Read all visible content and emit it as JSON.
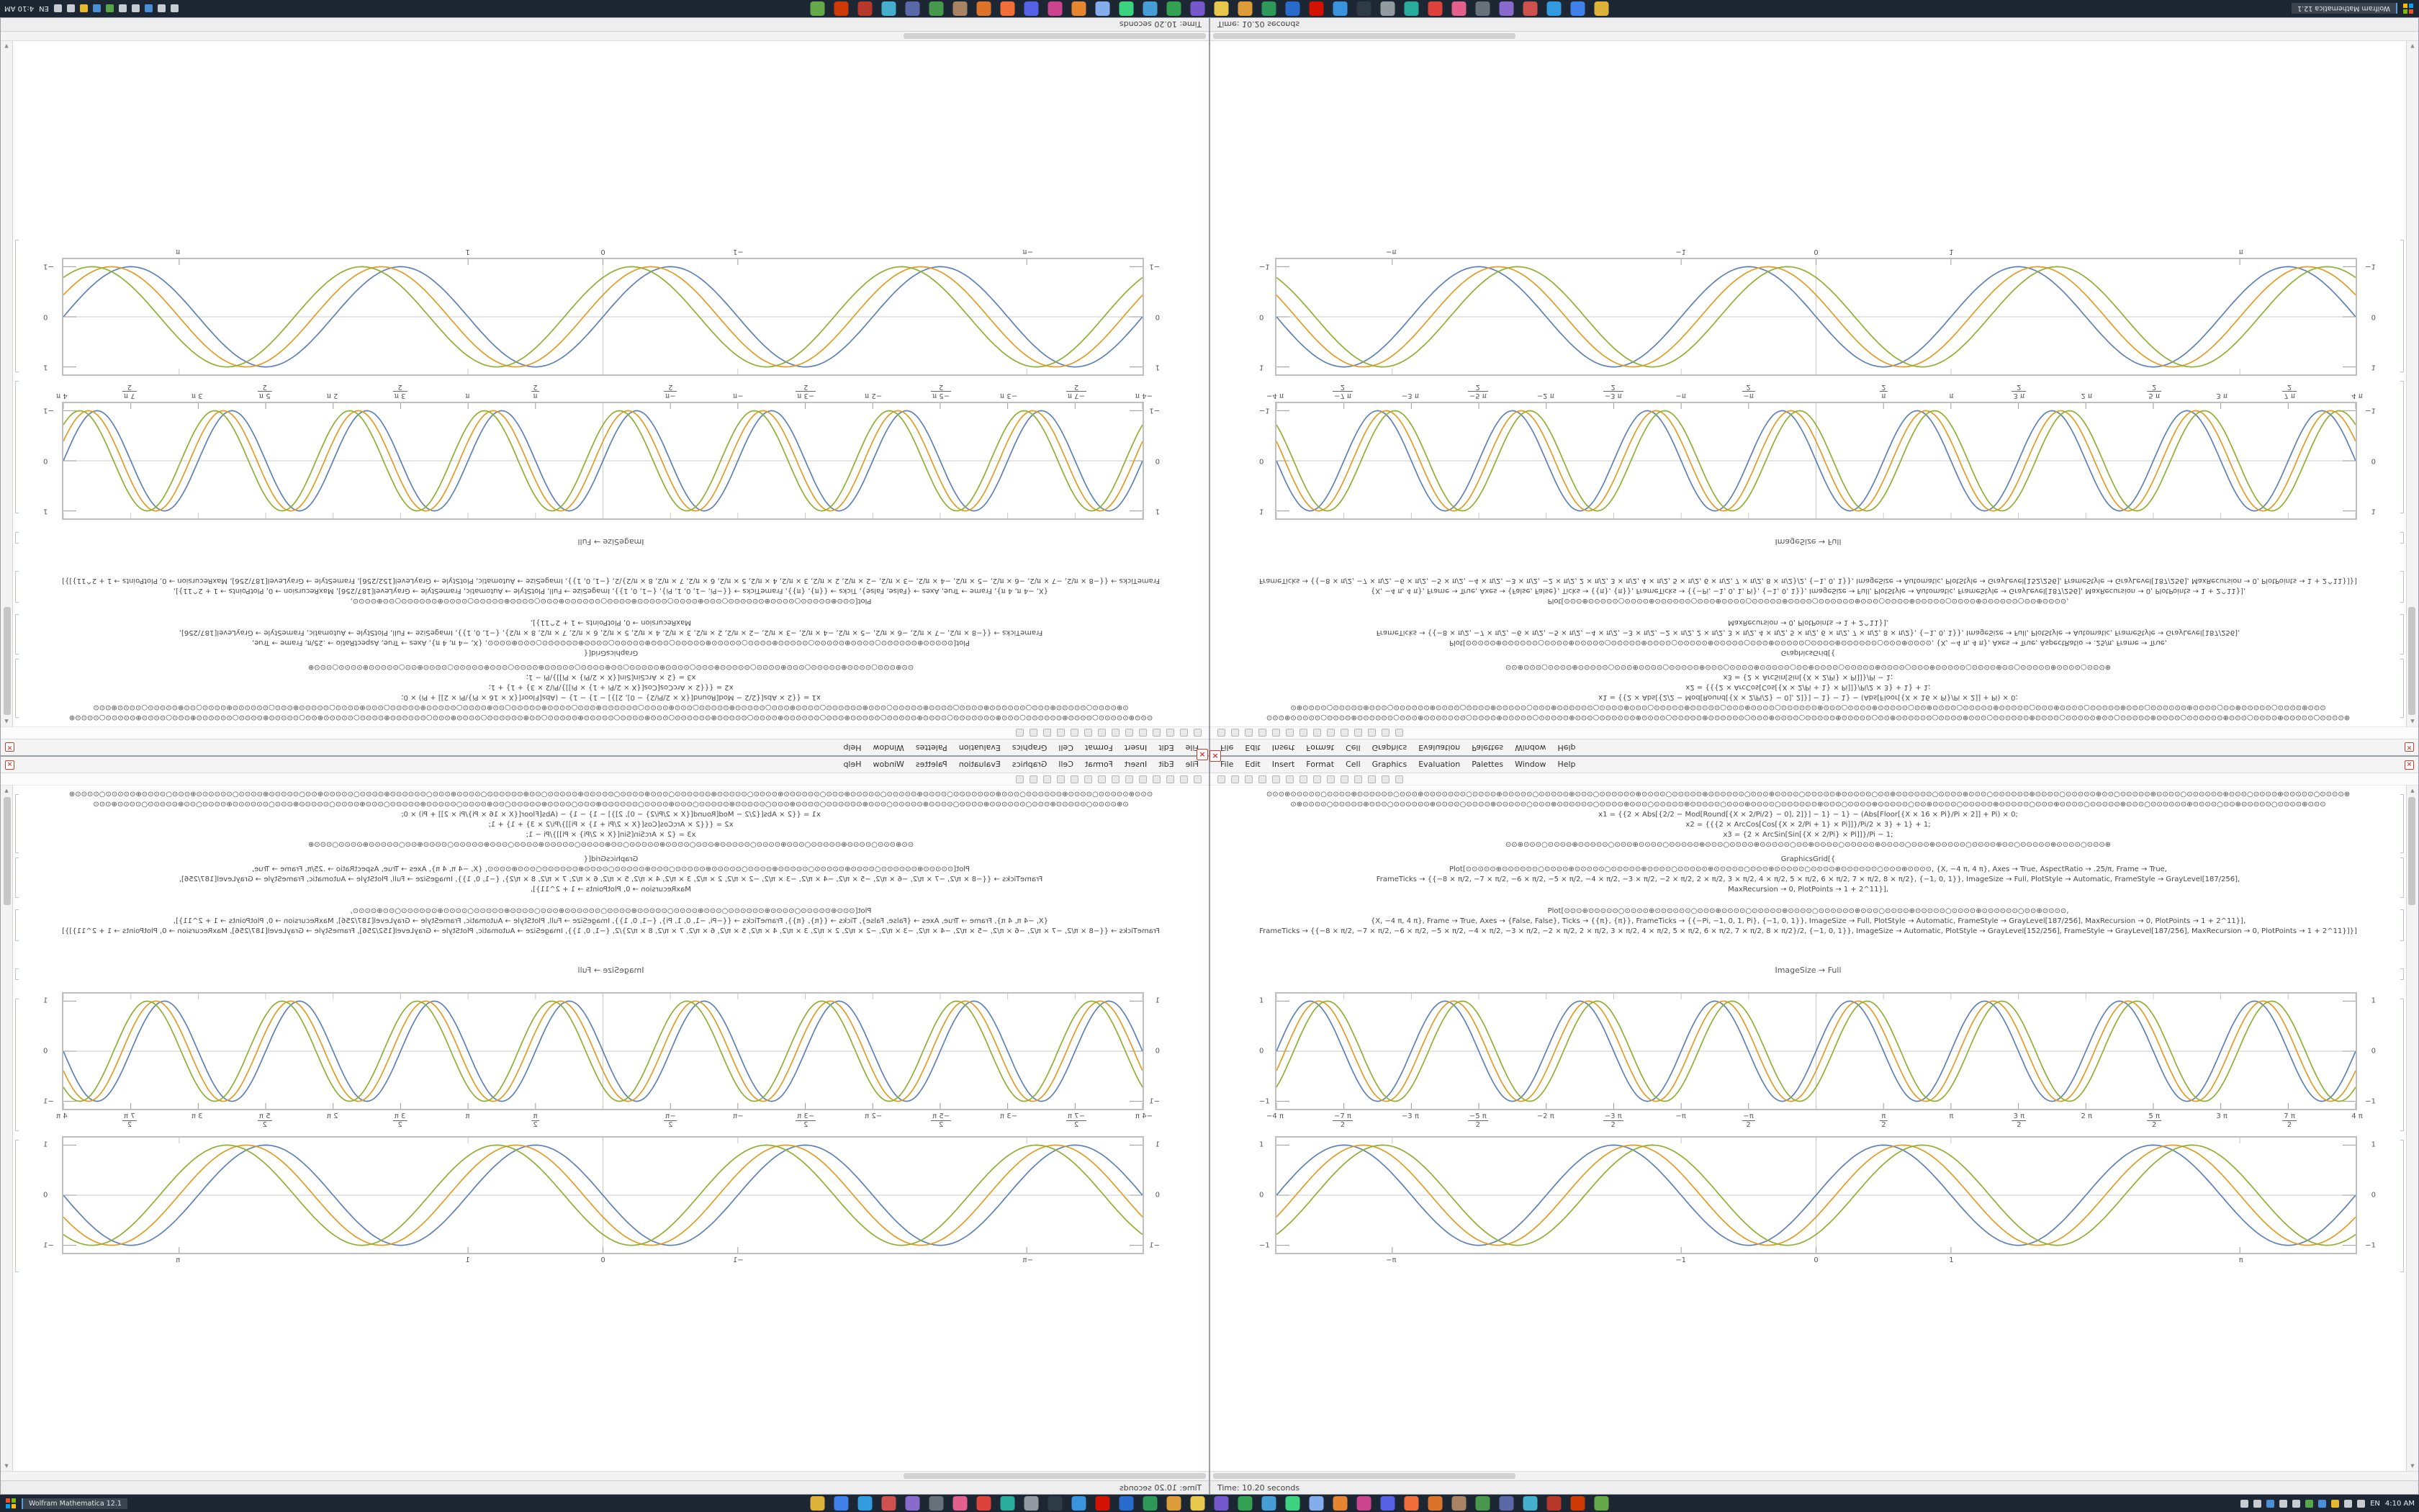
{
  "app": {
    "menu_items": [
      "File",
      "Edit",
      "Insert",
      "Format",
      "Cell",
      "Graphics",
      "Evaluation",
      "Palettes",
      "Window",
      "Help"
    ],
    "toolbar_buttons": [
      "new",
      "open",
      "save",
      "print",
      "cut",
      "copy",
      "paste",
      "undo",
      "redo",
      "find",
      "zoom-out",
      "zoom-in",
      "options",
      "help"
    ],
    "close_glyph": "×",
    "scroll_up_glyph": "▲",
    "scroll_down_glyph": "▼",
    "status_text": "Time: 10.20 seconds",
    "taskbar": {
      "window_button_label": "Wolfram Mathematica 12.1",
      "language": "EN",
      "clock": "4:10 AM",
      "app_icons": [
        {
          "name": "files",
          "color": "#e8b93a"
        },
        {
          "name": "browser",
          "color": "#4285f4"
        },
        {
          "name": "mail",
          "color": "#34a0e8"
        },
        {
          "name": "calendar",
          "color": "#d9534f"
        },
        {
          "name": "photos",
          "color": "#8e6fd6"
        },
        {
          "name": "camera",
          "color": "#6c757d"
        },
        {
          "name": "music",
          "color": "#f06292"
        },
        {
          "name": "video",
          "color": "#e8453c"
        },
        {
          "name": "store",
          "color": "#2bb3a3"
        },
        {
          "name": "settings",
          "color": "#9aa0a6"
        },
        {
          "name": "terminal",
          "color": "#2f3b47"
        },
        {
          "name": "code-editor",
          "color": "#3b9ae8"
        },
        {
          "name": "mathematica",
          "color": "#dd1100"
        },
        {
          "name": "docs",
          "color": "#2a6fd4"
        },
        {
          "name": "sheets",
          "color": "#2e9e5b"
        },
        {
          "name": "slides",
          "color": "#e8a23a"
        },
        {
          "name": "notes",
          "color": "#f2d14e"
        },
        {
          "name": "chat",
          "color": "#7b5bd6"
        },
        {
          "name": "meet",
          "color": "#34a853"
        },
        {
          "name": "cloud",
          "color": "#4aa3df"
        },
        {
          "name": "maps",
          "color": "#3ddc84"
        },
        {
          "name": "clock-app",
          "color": "#8ab4f8"
        },
        {
          "name": "calculator",
          "color": "#f28b30"
        },
        {
          "name": "paint",
          "color": "#d64594"
        },
        {
          "name": "games",
          "color": "#5865f2"
        },
        {
          "name": "browser-2",
          "color": "#ff7139"
        },
        {
          "name": "media-player",
          "color": "#e8762a"
        },
        {
          "name": "archive",
          "color": "#b08968"
        },
        {
          "name": "security",
          "color": "#4a9e4f"
        },
        {
          "name": "search",
          "color": "#5f6caf"
        },
        {
          "name": "weather",
          "color": "#49b6d6"
        },
        {
          "name": "news",
          "color": "#c0392b"
        },
        {
          "name": "office",
          "color": "#d83b01"
        },
        {
          "name": "help-app",
          "color": "#6ab04c"
        }
      ],
      "tray_icons": [
        {
          "name": "chevron-up",
          "color": "#c6ccd2"
        },
        {
          "name": "onedrive",
          "color": "#c6ccd2"
        },
        {
          "name": "defender",
          "color": "#4a90d9"
        },
        {
          "name": "volume",
          "color": "#c6ccd2"
        },
        {
          "name": "network",
          "color": "#c6ccd2"
        },
        {
          "name": "battery",
          "color": "#57a64a"
        },
        {
          "name": "bluetooth",
          "color": "#4a90d9"
        },
        {
          "name": "update",
          "color": "#e8b82a"
        },
        {
          "name": "clock-sync",
          "color": "#c6ccd2"
        },
        {
          "name": "pin",
          "color": "#c6ccd2"
        }
      ]
    }
  },
  "notebook": {
    "graphics_grid_label": "GraphicsGrid[{",
    "output_label": "ImageSize → Full",
    "code_cell_1": {
      "lines": [
        "⊙⊙⊙⊕⊙⊙⊙⊙⊙○⊙⊙⊙⊙⊕⊙⊙⊙⊙⊙⊙○⊙⊙⊙⊕⊙⊙⊙⊙⊙⊙⊙○⊙⊙⊙⊙⊕⊙⊙⊙⊙⊙○⊙⊙⊙⊙⊙⊕⊙⊙⊙○⊙⊙⊙⊙⊙⊙⊕⊙⊙⊙⊙○⊙⊙⊙⊙⊙⊕⊙⊙⊙⊙⊙⊙○⊙⊙⊙⊕⊙⊙⊙⊙○⊙⊙⊙⊙⊙⊕⊙⊙⊙⊙⊙○⊙⊙⊕⊙⊙⊙⊙⊙⊙○⊙⊙⊙⊙⊕⊙⊙⊙○⊙⊙⊙⊙⊙⊙⊕⊙⊙⊙⊙○⊙⊙⊙⊙⊙⊕⊙⊙○⊙⊙⊙⊙⊙⊕⊙⊙⊙⊙○⊙⊙⊙⊙⊙⊙⊕⊙⊙⊙○⊙⊙⊙⊙⊕⊙⊙⊙⊙⊙○⊙⊙⊙⊙⊕",
        "⊙⊕⊙⊙⊙⊙○⊙⊙⊙⊙⊙⊕⊙⊙⊙○⊙⊙⊙⊙⊙⊙⊕⊙⊙⊙⊙○⊙⊙⊙⊙⊕⊙⊙⊙⊙⊙○⊙⊙⊙⊕⊙⊙⊙⊙⊙⊙○⊙⊙⊙⊙⊕⊙⊙⊙○⊙⊙⊙⊙⊙⊕⊙⊙⊙⊙⊙○⊙⊙⊙⊕⊙⊙⊙⊙○⊙⊙⊙⊙⊙⊙⊕⊙⊙⊙○⊙⊙⊙⊙⊕⊙⊙⊙⊙⊙○⊙⊙⊕⊙⊙⊙⊙○⊙⊙⊙⊙⊙⊕⊙⊙⊙⊙⊙○⊙⊙⊙⊕⊙⊙⊙⊙○⊙⊙⊙⊙⊙⊕⊙⊙⊙○⊙⊙⊙⊙⊙⊙⊕⊙⊙⊙⊙○⊙⊙⊕⊙⊙⊙⊙⊙○⊙⊙⊙⊙⊕⊙⊙⊙",
        "x1 = {{2 × Abs[{2/2 − Mod[Round[{X × 2/Pi/2} − 0], 2]}] − 1} − 1} − (Abs[Floor[{X × 16 × Pi}/Pi × 2]] + Pi) × 0;",
        "x2 = {{{2 × ArcCos[Cos[{X × 2/Pi + 1} × Pi]]}/Pi/2 × 3} + 1} + 1;",
        "x3 = {2 × ArcSin[Sin[{X × 2/Pi} × Pi]]}/Pi − 1;",
        "⊙⊙⊕⊙⊙⊙○⊙⊙⊙⊙⊕⊙⊙⊙⊙⊙○⊙⊙⊙⊕⊙⊙⊙⊙○⊙⊙⊙⊙⊙⊕⊙⊙⊙○⊙⊙⊙⊙⊕⊙⊙⊙⊙⊙○⊙⊙⊕⊙⊙⊙⊙○⊙⊙⊙⊙⊙⊕⊙⊙⊙⊙○⊙⊙⊙⊕⊙⊙⊙⊙⊙○⊙⊙⊙⊙⊕⊙⊙○⊙⊙⊙⊙⊙⊕⊙⊙⊙⊙○⊙⊙⊙⊕"
      ]
    },
    "code_cell_2": {
      "lines": [
        "Plot[⊙⊙⊙⊙⊙⊕⊙⊙⊙⊙⊙⊙○⊙⊙⊙⊙⊕⊙⊙⊙⊙⊙○⊙⊙⊙⊙⊙⊕⊙⊙⊙⊙○⊙⊙⊙⊙⊙⊕⊙⊙⊙⊙⊙○⊙⊙⊙⊕⊙⊙⊙⊙⊙○⊙⊙⊙⊙⊕⊙⊙⊙⊙⊙⊙○⊙⊙⊙⊕⊙⊙⊙⊙, {X, −4 π, 4 π}, Axes → True, AspectRatio → .25/π, Frame → True,",
        "FrameTicks → {{−8 × π/2, −7 × π/2, −6 × π/2, −5 × π/2, −4 × π/2, −3 × π/2, −2 × π/2, 2 × π/2, 3 × π/2, 4 × π/2, 5 × π/2, 6 × π/2, 7 × π/2, 8 × π/2}, {−1, 0, 1}}, ImageSize → Full, PlotStyle → Automatic, FrameStyle → GrayLevel[187/256],",
        "MaxRecursion → 0, PlotPoints → 1 + 2^11}],"
      ]
    },
    "code_cell_3": {
      "lines": [
        "Plot[⊙⊙⊙⊕⊙⊙⊙⊙⊙○⊙⊙⊙⊙⊕⊙⊙⊙⊙⊙⊙○⊙⊙⊙⊕⊙⊙⊙⊙○⊙⊙⊙⊙⊙⊕⊙⊙⊙⊙○⊙⊙⊙⊙⊙⊙⊕⊙⊙⊙○⊙⊙⊙⊙⊕⊙⊙⊙⊙⊙○⊙⊙⊙⊙⊕⊙⊙⊙⊙⊙⊙○⊙⊙⊕⊙⊙⊙⊙,",
        "{X, −4 π, 4 π}, Frame → True, Axes → {False, False}, Ticks → {{π}, {π}}, FrameTicks → {{−Pi, −1, 0, 1, Pi}, {−1, 0, 1}}, ImageSize → Full, PlotStyle → Automatic, FrameStyle → GrayLevel[187/256], MaxRecursion → 0, PlotPoints → 1 + 2^11}],",
        "FrameTicks → {{−8 × π/2, −7 × π/2, −6 × π/2, −5 × π/2, −4 × π/2, −3 × π/2, −2 × π/2, 2 × π/2, 3 × π/2, 4 × π/2, 5 × π/2, 6 × π/2, 7 × π/2, 8 × π/2}/2, {−1, 0, 1}}, ImageSize → Automatic, PlotStyle → GrayLevel[152/256], FrameStyle → GrayLevel[187/256], MaxRecursion → 0, PlotPoints → 1 + 2^11}]}]"
      ]
    }
  },
  "chart_data": [
    {
      "type": "line",
      "title": "",
      "xlabel": "",
      "ylabel": "",
      "x_range": [
        -12.566,
        12.566
      ],
      "y_range": [
        -1.15,
        1.15
      ],
      "grid": false,
      "frame": true,
      "axes": true,
      "frame_color": "#bfbfbf",
      "axis_color": "#cccccc",
      "legend": "none",
      "series": [
        {
          "name": "sine-blue",
          "color": "#5e81b5",
          "amplitude": 1,
          "frequency": 2,
          "phase": 0
        },
        {
          "name": "sine-gold",
          "color": "#e19c24",
          "amplitude": 1,
          "frequency": 2,
          "phase": -0.4
        },
        {
          "name": "sine-green",
          "color": "#8fb032",
          "amplitude": 1,
          "frequency": 2,
          "phase": -0.8
        }
      ],
      "x_ticks": [
        {
          "p": 0,
          "t1": "−4 π"
        },
        {
          "p": 0.0625,
          "t1": "−7 π",
          "t2": "2"
        },
        {
          "p": 0.125,
          "t1": "−3 π"
        },
        {
          "p": 0.1875,
          "t1": "−5 π",
          "t2": "2"
        },
        {
          "p": 0.25,
          "t1": "−2 π"
        },
        {
          "p": 0.3125,
          "t1": "−3 π",
          "t2": "2"
        },
        {
          "p": 0.375,
          "t1": "−π"
        },
        {
          "p": 0.4375,
          "t1": "−π",
          "t2": "2"
        },
        {
          "p": 0.5625,
          "t1": "π",
          "t2": "2"
        },
        {
          "p": 0.625,
          "t1": "π"
        },
        {
          "p": 0.6875,
          "t1": "3 π",
          "t2": "2"
        },
        {
          "p": 0.75,
          "t1": "2 π"
        },
        {
          "p": 0.8125,
          "t1": "5 π",
          "t2": "2"
        },
        {
          "p": 0.875,
          "t1": "3 π"
        },
        {
          "p": 0.9375,
          "t1": "7 π",
          "t2": "2"
        },
        {
          "p": 1,
          "t1": "4 π"
        }
      ],
      "y_ticks": [
        {
          "p": 0.065,
          "label": "1"
        },
        {
          "p": 0.5,
          "label": "0"
        },
        {
          "p": 0.935,
          "label": "−1"
        }
      ]
    },
    {
      "type": "line",
      "title": "",
      "xlabel": "",
      "ylabel": "",
      "x_range": [
        -4,
        4
      ],
      "y_range": [
        -1.15,
        1.15
      ],
      "grid": false,
      "frame": true,
      "axes": true,
      "frame_color": "#bfbfbf",
      "axis_color": "#cccccc",
      "legend": "none",
      "series": [
        {
          "name": "sine-blue",
          "color": "#5e81b5",
          "amplitude": 1,
          "frequency": 3.1416,
          "phase": 0
        },
        {
          "name": "sine-gold",
          "color": "#e19c24",
          "amplitude": 1,
          "frequency": 3.1416,
          "phase": -0.45
        },
        {
          "name": "sine-green",
          "color": "#8fb032",
          "amplitude": 1,
          "frequency": 3.1416,
          "phase": -0.9
        }
      ],
      "x_ticks": [
        {
          "p": 0.1073,
          "t1": "−π"
        },
        {
          "p": 0.375,
          "t1": "−1"
        },
        {
          "p": 0.5,
          "t1": "0"
        },
        {
          "p": 0.625,
          "t1": "1"
        },
        {
          "p": 0.8927,
          "t1": "π"
        }
      ],
      "y_ticks": [
        {
          "p": 0.065,
          "label": "1"
        },
        {
          "p": 0.5,
          "label": "0"
        },
        {
          "p": 0.935,
          "label": "−1"
        }
      ]
    }
  ]
}
